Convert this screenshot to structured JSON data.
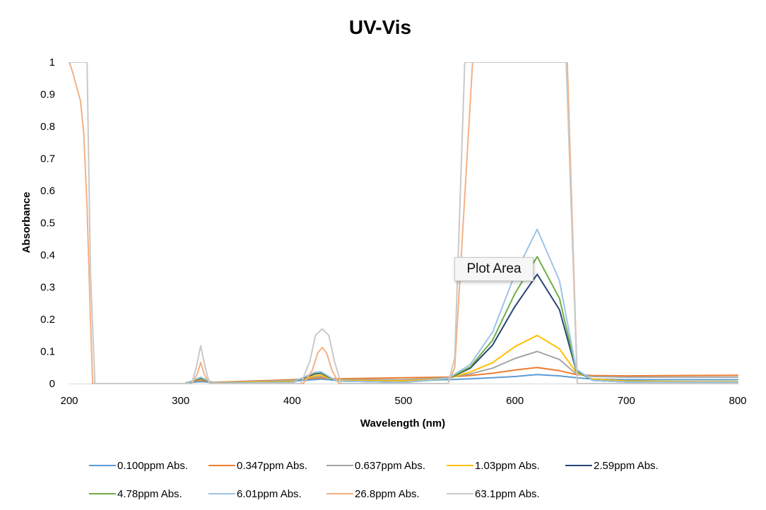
{
  "chart_data": {
    "type": "line",
    "title": "UV-Vis",
    "xlabel": "Wavelength (nm)",
    "ylabel": "Absorbance",
    "xlim": [
      200,
      800
    ],
    "ylim": [
      0,
      1
    ],
    "xticks": [
      200,
      300,
      400,
      500,
      600,
      700,
      800
    ],
    "yticks": [
      0,
      0.1,
      0.2,
      0.3,
      0.4,
      0.5,
      0.6,
      0.7,
      0.8,
      0.9,
      1
    ],
    "ytick_labels": [
      "0",
      "0.1",
      "0.2",
      "0.3",
      "0.4",
      "0.5",
      "0.6",
      "0.7",
      "0.8",
      "0.9",
      "1"
    ],
    "grid": false,
    "legend_position": "bottom",
    "series": [
      {
        "name": "0.100ppm Abs.",
        "color": "#5b9bd5",
        "x": [
          305,
          318,
          330,
          400,
          420,
          426,
          440,
          500,
          540,
          560,
          580,
          600,
          620,
          640,
          655,
          670,
          700,
          750,
          800
        ],
        "y": [
          0.002,
          0.006,
          0.003,
          0.008,
          0.012,
          0.014,
          0.01,
          0.01,
          0.012,
          0.015,
          0.018,
          0.022,
          0.028,
          0.024,
          0.018,
          0.014,
          0.012,
          0.012,
          0.012
        ]
      },
      {
        "name": "0.347ppm Abs.",
        "color": "#ed7d31",
        "x": [
          305,
          318,
          330,
          400,
          420,
          426,
          440,
          500,
          540,
          560,
          580,
          600,
          620,
          640,
          655,
          670,
          700,
          750,
          800
        ],
        "y": [
          0.003,
          0.01,
          0.004,
          0.012,
          0.016,
          0.018,
          0.015,
          0.018,
          0.02,
          0.025,
          0.032,
          0.042,
          0.05,
          0.04,
          0.028,
          0.025,
          0.024,
          0.025,
          0.026
        ]
      },
      {
        "name": "0.637ppm Abs.",
        "color": "#a5a5a5",
        "x": [
          305,
          318,
          330,
          400,
          420,
          426,
          440,
          500,
          540,
          560,
          580,
          600,
          620,
          640,
          655,
          670,
          700,
          750,
          800
        ],
        "y": [
          0.002,
          0.012,
          0.003,
          0.01,
          0.02,
          0.022,
          0.012,
          0.012,
          0.018,
          0.03,
          0.048,
          0.078,
          0.1,
          0.075,
          0.03,
          0.022,
          0.02,
          0.02,
          0.02
        ]
      },
      {
        "name": "1.03ppm Abs.",
        "color": "#ffc000",
        "x": [
          305,
          318,
          330,
          400,
          420,
          426,
          440,
          500,
          540,
          560,
          580,
          600,
          620,
          640,
          655,
          670,
          700,
          750,
          800
        ],
        "y": [
          0.002,
          0.014,
          0.002,
          0.006,
          0.024,
          0.026,
          0.01,
          0.008,
          0.016,
          0.036,
          0.065,
          0.115,
          0.15,
          0.108,
          0.035,
          0.014,
          0.008,
          0.006,
          0.006
        ]
      },
      {
        "name": "2.59ppm Abs.",
        "color": "#264478",
        "x": [
          305,
          318,
          330,
          400,
          420,
          426,
          440,
          500,
          540,
          560,
          580,
          600,
          620,
          640,
          655,
          670,
          700,
          750,
          800
        ],
        "y": [
          0.001,
          0.016,
          0.001,
          0.003,
          0.03,
          0.032,
          0.008,
          0.004,
          0.015,
          0.048,
          0.12,
          0.24,
          0.34,
          0.23,
          0.04,
          0.01,
          0.005,
          0.004,
          0.004
        ]
      },
      {
        "name": "4.78ppm Abs.",
        "color": "#70ad47",
        "x": [
          305,
          318,
          330,
          400,
          420,
          426,
          440,
          500,
          540,
          560,
          580,
          600,
          620,
          640,
          655,
          670,
          700,
          750,
          800
        ],
        "y": [
          0.001,
          0.018,
          0.001,
          0.003,
          0.033,
          0.035,
          0.008,
          0.004,
          0.015,
          0.052,
          0.135,
          0.28,
          0.395,
          0.265,
          0.042,
          0.01,
          0.005,
          0.004,
          0.004
        ]
      },
      {
        "name": "6.01ppm Abs.",
        "color": "#9dc3e6",
        "x": [
          305,
          318,
          330,
          400,
          420,
          426,
          440,
          500,
          540,
          560,
          580,
          600,
          620,
          640,
          655,
          670,
          700,
          750,
          800
        ],
        "y": [
          0.001,
          0.02,
          0.001,
          0.003,
          0.035,
          0.037,
          0.008,
          0.004,
          0.016,
          0.06,
          0.16,
          0.34,
          0.48,
          0.32,
          0.045,
          0.01,
          0.005,
          0.004,
          0.004
        ]
      },
      {
        "name": "26.8ppm Abs.",
        "color": "#f4b183",
        "x": [
          200,
          203,
          206,
          210,
          213,
          216,
          219,
          221,
          225,
          300,
          310,
          315,
          318,
          321,
          326,
          410,
          418,
          423,
          427,
          431,
          436,
          442,
          450,
          540,
          546,
          562,
          600,
          632,
          647,
          656,
          662,
          700,
          800
        ],
        "y": [
          1.0,
          0.97,
          0.93,
          0.88,
          0.78,
          0.55,
          0.2,
          0.0,
          0.0,
          0.0,
          0.0,
          0.03,
          0.066,
          0.03,
          0.0,
          0.0,
          0.04,
          0.095,
          0.112,
          0.095,
          0.04,
          0.0,
          0.0,
          0.0,
          0.05,
          1.0,
          1.0,
          1.0,
          1.0,
          0.0,
          0.0,
          0.0,
          0.0
        ]
      },
      {
        "name": "63.1ppm Abs.",
        "color": "#c9c9c9",
        "x": [
          200,
          212,
          216,
          219,
          223,
          300,
          310,
          314,
          318,
          322,
          326,
          408,
          416,
          421,
          427,
          433,
          438,
          444,
          452,
          540,
          546,
          555,
          600,
          632,
          646,
          656,
          662,
          700,
          800
        ],
        "y": [
          1.0,
          1.0,
          1.0,
          0.35,
          0.0,
          0.0,
          0.0,
          0.05,
          0.118,
          0.05,
          0.0,
          0.0,
          0.07,
          0.15,
          0.17,
          0.15,
          0.07,
          0.0,
          0.0,
          0.0,
          0.08,
          1.0,
          1.0,
          1.0,
          1.0,
          0.0,
          0.0,
          0.0,
          0.0
        ]
      }
    ]
  },
  "tooltip": {
    "label": "Plot Area"
  }
}
